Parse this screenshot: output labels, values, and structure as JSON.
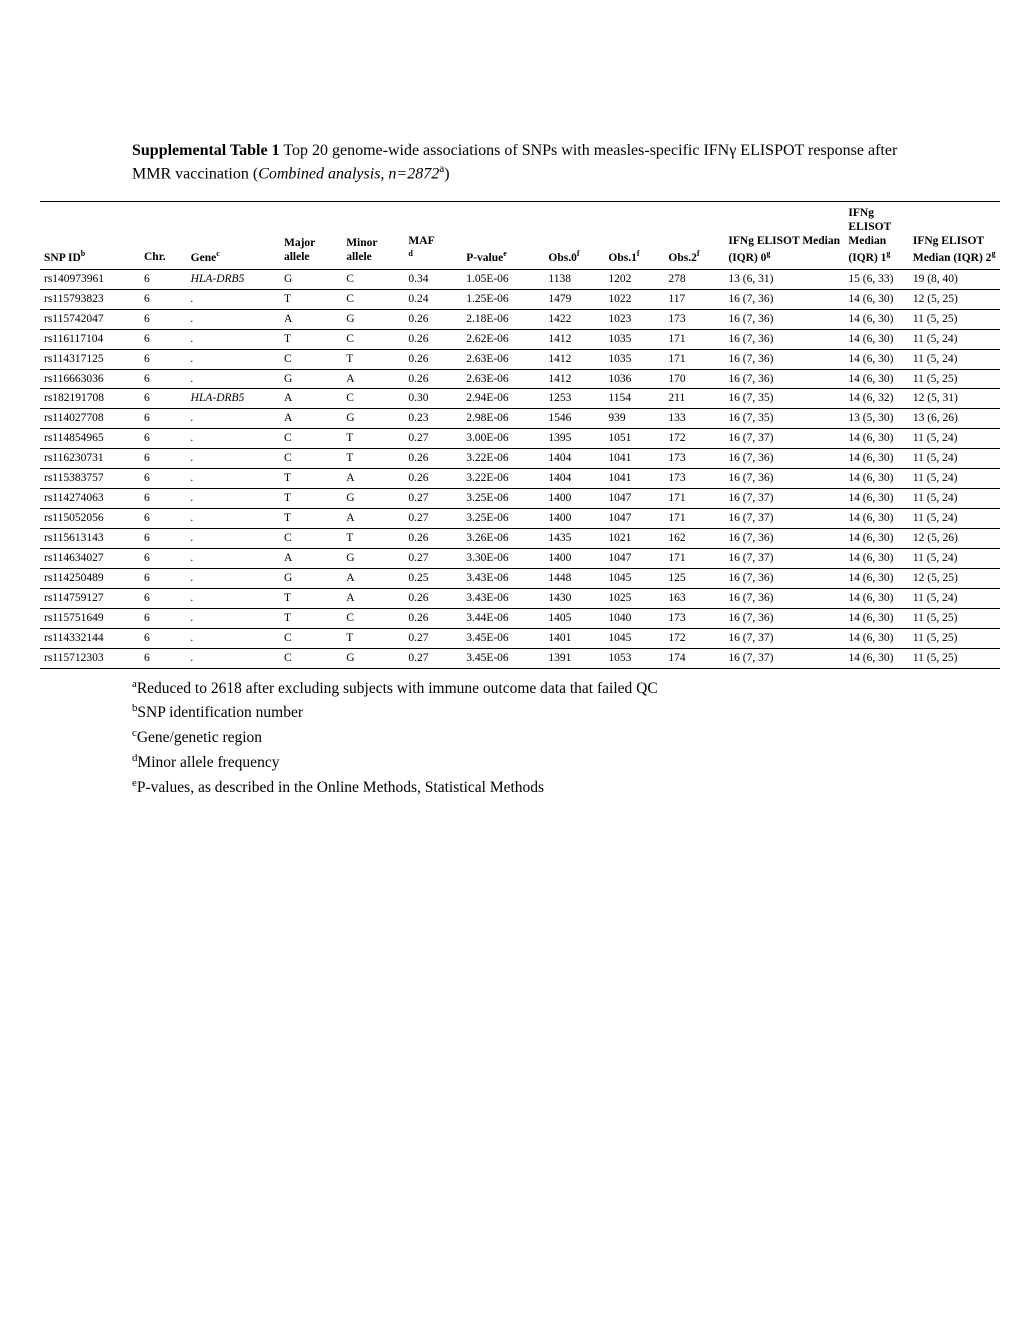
{
  "title": {
    "bold": "Supplemental Table 1",
    "rest1": " Top 20 genome-wide associations of SNPs with measles-specific IFNγ ELISPOT response after MMR vaccination (",
    "italic": "Combined analysis, n=2872",
    "sup": "a",
    "rest2": ")"
  },
  "headers": {
    "snp": "SNP ID",
    "snp_sup": "b",
    "chr": "Chr.",
    "gene": "Gene",
    "gene_sup": "c",
    "major": "Major allele",
    "minor": "Minor allele",
    "maf": "MAF",
    "maf_sup": "d",
    "pval": "P-value",
    "pval_sup": "e",
    "obs0": "Obs.0",
    "obs0_sup": "f",
    "obs1": "Obs.1",
    "obs1_sup": "f",
    "obs2": "Obs.2",
    "obs2_sup": "f",
    "med0": "IFNg ELISOT Median (IQR) 0",
    "med0_sup": "g",
    "med1": "IFNg ELISOT Median (IQR) 1",
    "med1_sup": "g",
    "med2": "IFNg ELISOT Median (IQR) 2",
    "med2_sup": "g"
  },
  "rows": [
    {
      "snp": "rs140973961",
      "chr": "6",
      "gene": "HLA-DRB5",
      "maj": "G",
      "min": "C",
      "maf": "0.34",
      "p": "1.05E-06",
      "o0": "1138",
      "o1": "1202",
      "o2": "278",
      "m0": "13 (6, 31)",
      "m1": "15 (6, 33)",
      "m2": "19 (8, 40)"
    },
    {
      "snp": "rs115793823",
      "chr": "6",
      "gene": ".",
      "maj": "T",
      "min": "C",
      "maf": "0.24",
      "p": "1.25E-06",
      "o0": "1479",
      "o1": "1022",
      "o2": "117",
      "m0": "16 (7, 36)",
      "m1": "14 (6, 30)",
      "m2": "12 (5, 25)"
    },
    {
      "snp": "rs115742047",
      "chr": "6",
      "gene": ".",
      "maj": "A",
      "min": "G",
      "maf": "0.26",
      "p": "2.18E-06",
      "o0": "1422",
      "o1": "1023",
      "o2": "173",
      "m0": "16 (7, 36)",
      "m1": "14 (6, 30)",
      "m2": "11 (5, 25)"
    },
    {
      "snp": "rs116117104",
      "chr": "6",
      "gene": ".",
      "maj": "T",
      "min": "C",
      "maf": "0.26",
      "p": "2.62E-06",
      "o0": "1412",
      "o1": "1035",
      "o2": "171",
      "m0": "16 (7, 36)",
      "m1": "14 (6, 30)",
      "m2": "11 (5, 24)"
    },
    {
      "snp": "rs114317125",
      "chr": "6",
      "gene": ".",
      "maj": "C",
      "min": "T",
      "maf": "0.26",
      "p": "2.63E-06",
      "o0": "1412",
      "o1": "1035",
      "o2": "171",
      "m0": "16 (7, 36)",
      "m1": "14 (6, 30)",
      "m2": "11 (5, 24)"
    },
    {
      "snp": "rs116663036",
      "chr": "6",
      "gene": ".",
      "maj": "G",
      "min": "A",
      "maf": "0.26",
      "p": "2.63E-06",
      "o0": "1412",
      "o1": "1036",
      "o2": "170",
      "m0": "16 (7, 36)",
      "m1": "14 (6, 30)",
      "m2": "11 (5, 25)"
    },
    {
      "snp": "rs182191708",
      "chr": "6",
      "gene": "HLA-DRB5",
      "maj": "A",
      "min": "C",
      "maf": "0.30",
      "p": "2.94E-06",
      "o0": "1253",
      "o1": "1154",
      "o2": "211",
      "m0": "16 (7, 35)",
      "m1": "14 (6, 32)",
      "m2": "12 (5, 31)"
    },
    {
      "snp": "rs114027708",
      "chr": "6",
      "gene": ".",
      "maj": "A",
      "min": "G",
      "maf": "0.23",
      "p": "2.98E-06",
      "o0": "1546",
      "o1": "939",
      "o2": "133",
      "m0": "16 (7, 35)",
      "m1": "13 (5, 30)",
      "m2": "13 (6, 26)"
    },
    {
      "snp": "rs114854965",
      "chr": "6",
      "gene": ".",
      "maj": "C",
      "min": "T",
      "maf": "0.27",
      "p": "3.00E-06",
      "o0": "1395",
      "o1": "1051",
      "o2": "172",
      "m0": "16 (7, 37)",
      "m1": "14 (6, 30)",
      "m2": "11 (5, 24)"
    },
    {
      "snp": "rs116230731",
      "chr": "6",
      "gene": ".",
      "maj": "C",
      "min": "T",
      "maf": "0.26",
      "p": "3.22E-06",
      "o0": "1404",
      "o1": "1041",
      "o2": "173",
      "m0": "16 (7, 36)",
      "m1": "14 (6, 30)",
      "m2": "11 (5, 24)"
    },
    {
      "snp": "rs115383757",
      "chr": "6",
      "gene": ".",
      "maj": "T",
      "min": "A",
      "maf": "0.26",
      "p": "3.22E-06",
      "o0": "1404",
      "o1": "1041",
      "o2": "173",
      "m0": "16 (7, 36)",
      "m1": "14 (6, 30)",
      "m2": "11 (5, 24)"
    },
    {
      "snp": "rs114274063",
      "chr": "6",
      "gene": ".",
      "maj": "T",
      "min": "G",
      "maf": "0.27",
      "p": "3.25E-06",
      "o0": "1400",
      "o1": "1047",
      "o2": "171",
      "m0": "16 (7, 37)",
      "m1": "14 (6, 30)",
      "m2": "11 (5, 24)"
    },
    {
      "snp": "rs115052056",
      "chr": "6",
      "gene": ".",
      "maj": "T",
      "min": "A",
      "maf": "0.27",
      "p": "3.25E-06",
      "o0": "1400",
      "o1": "1047",
      "o2": "171",
      "m0": "16 (7, 37)",
      "m1": "14 (6, 30)",
      "m2": "11 (5, 24)"
    },
    {
      "snp": "rs115613143",
      "chr": "6",
      "gene": ".",
      "maj": "C",
      "min": "T",
      "maf": "0.26",
      "p": "3.26E-06",
      "o0": "1435",
      "o1": "1021",
      "o2": "162",
      "m0": "16 (7, 36)",
      "m1": "14 (6, 30)",
      "m2": "12 (5, 26)"
    },
    {
      "snp": "rs114634027",
      "chr": "6",
      "gene": ".",
      "maj": "A",
      "min": "G",
      "maf": "0.27",
      "p": "3.30E-06",
      "o0": "1400",
      "o1": "1047",
      "o2": "171",
      "m0": "16 (7, 37)",
      "m1": "14 (6, 30)",
      "m2": "11 (5, 24)"
    },
    {
      "snp": "rs114250489",
      "chr": "6",
      "gene": ".",
      "maj": "G",
      "min": "A",
      "maf": "0.25",
      "p": "3.43E-06",
      "o0": "1448",
      "o1": "1045",
      "o2": "125",
      "m0": "16 (7, 36)",
      "m1": "14 (6, 30)",
      "m2": "12 (5, 25)"
    },
    {
      "snp": "rs114759127",
      "chr": "6",
      "gene": ".",
      "maj": "T",
      "min": "A",
      "maf": "0.26",
      "p": "3.43E-06",
      "o0": "1430",
      "o1": "1025",
      "o2": "163",
      "m0": "16 (7, 36)",
      "m1": "14 (6, 30)",
      "m2": "11 (5, 24)"
    },
    {
      "snp": "rs115751649",
      "chr": "6",
      "gene": ".",
      "maj": "T",
      "min": "C",
      "maf": "0.26",
      "p": "3.44E-06",
      "o0": "1405",
      "o1": "1040",
      "o2": "173",
      "m0": "16 (7, 36)",
      "m1": "14 (6, 30)",
      "m2": "11 (5, 25)"
    },
    {
      "snp": "rs114332144",
      "chr": "6",
      "gene": ".",
      "maj": "C",
      "min": "T",
      "maf": "0.27",
      "p": "3.45E-06",
      "o0": "1401",
      "o1": "1045",
      "o2": "172",
      "m0": "16 (7, 37)",
      "m1": "14 (6, 30)",
      "m2": "11 (5, 25)"
    },
    {
      "snp": "rs115712303",
      "chr": "6",
      "gene": ".",
      "maj": "C",
      "min": "G",
      "maf": "0.27",
      "p": "3.45E-06",
      "o0": "1391",
      "o1": "1053",
      "o2": "174",
      "m0": "16 (7, 37)",
      "m1": "14 (6, 30)",
      "m2": "11 (5, 25)"
    }
  ],
  "footnotes": {
    "a": "Reduced to 2618 after excluding subjects with immune outcome data that failed QC",
    "b": "SNP identification number",
    "c": "Gene/genetic region",
    "d": "Minor allele frequency",
    "e": "P-values, as described in the Online Methods, Statistical Methods"
  }
}
